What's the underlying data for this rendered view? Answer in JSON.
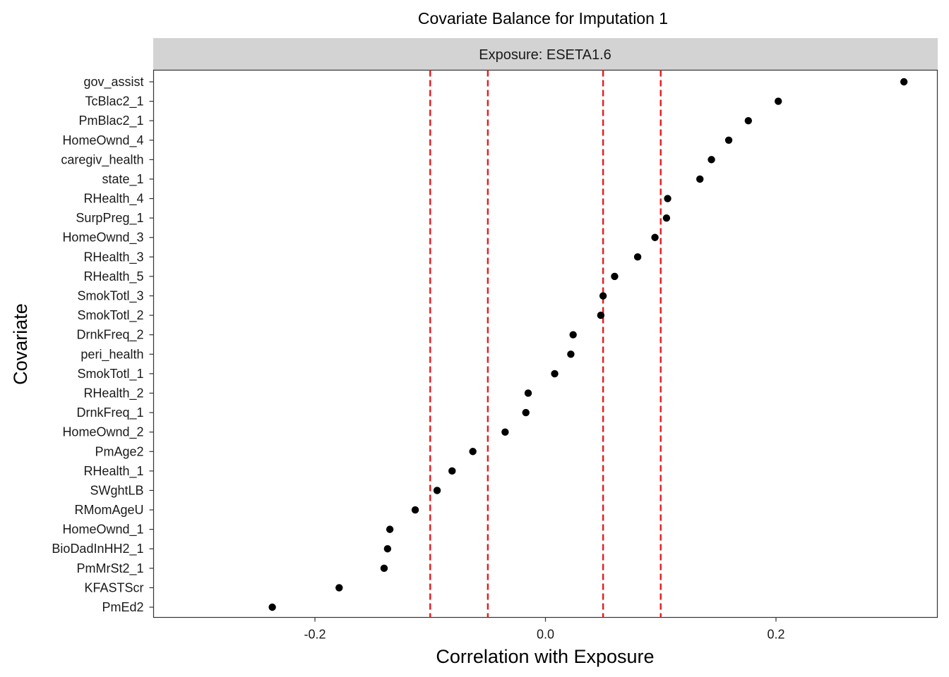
{
  "chart_data": {
    "type": "scatter",
    "title": "Covariate Balance for Imputation 1",
    "facet_label": "Exposure: ESETA1.6",
    "xlabel": "Correlation with Exposure",
    "ylabel": "Covariate",
    "xlim": [
      -0.34,
      0.34
    ],
    "x_ticks": [
      -0.2,
      0.0,
      0.2
    ],
    "x_tick_labels": [
      "-0.2",
      "0.0",
      "0.2"
    ],
    "grid": false,
    "reference_lines": [
      -0.1,
      -0.05,
      0.05,
      0.1
    ],
    "reference_line_color": "#e41a1c",
    "point_color": "#000000",
    "strip_color": "#d3d3d3",
    "points": [
      {
        "covariate": "gov_assist",
        "value": 0.311
      },
      {
        "covariate": "TcBlac2_1",
        "value": 0.202
      },
      {
        "covariate": "PmBlac2_1",
        "value": 0.176
      },
      {
        "covariate": "HomeOwnd_4",
        "value": 0.159
      },
      {
        "covariate": "caregiv_health",
        "value": 0.144
      },
      {
        "covariate": "state_1",
        "value": 0.134
      },
      {
        "covariate": "RHealth_4",
        "value": 0.106
      },
      {
        "covariate": "SurpPreg_1",
        "value": 0.105
      },
      {
        "covariate": "HomeOwnd_3",
        "value": 0.095
      },
      {
        "covariate": "RHealth_3",
        "value": 0.08
      },
      {
        "covariate": "RHealth_5",
        "value": 0.06
      },
      {
        "covariate": "SmokTotl_3",
        "value": 0.05
      },
      {
        "covariate": "SmokTotl_2",
        "value": 0.048
      },
      {
        "covariate": "DrnkFreq_2",
        "value": 0.024
      },
      {
        "covariate": "peri_health",
        "value": 0.022
      },
      {
        "covariate": "SmokTotl_1",
        "value": 0.008
      },
      {
        "covariate": "RHealth_2",
        "value": -0.015
      },
      {
        "covariate": "DrnkFreq_1",
        "value": -0.017
      },
      {
        "covariate": "HomeOwnd_2",
        "value": -0.035
      },
      {
        "covariate": "PmAge2",
        "value": -0.063
      },
      {
        "covariate": "RHealth_1",
        "value": -0.081
      },
      {
        "covariate": "SWghtLB",
        "value": -0.094
      },
      {
        "covariate": "RMomAgeU",
        "value": -0.113
      },
      {
        "covariate": "HomeOwnd_1",
        "value": -0.135
      },
      {
        "covariate": "BioDadInHH2_1",
        "value": -0.137
      },
      {
        "covariate": "PmMrSt2_1",
        "value": -0.14
      },
      {
        "covariate": "KFASTScr",
        "value": -0.179
      },
      {
        "covariate": "PmEd2",
        "value": -0.237
      }
    ]
  }
}
